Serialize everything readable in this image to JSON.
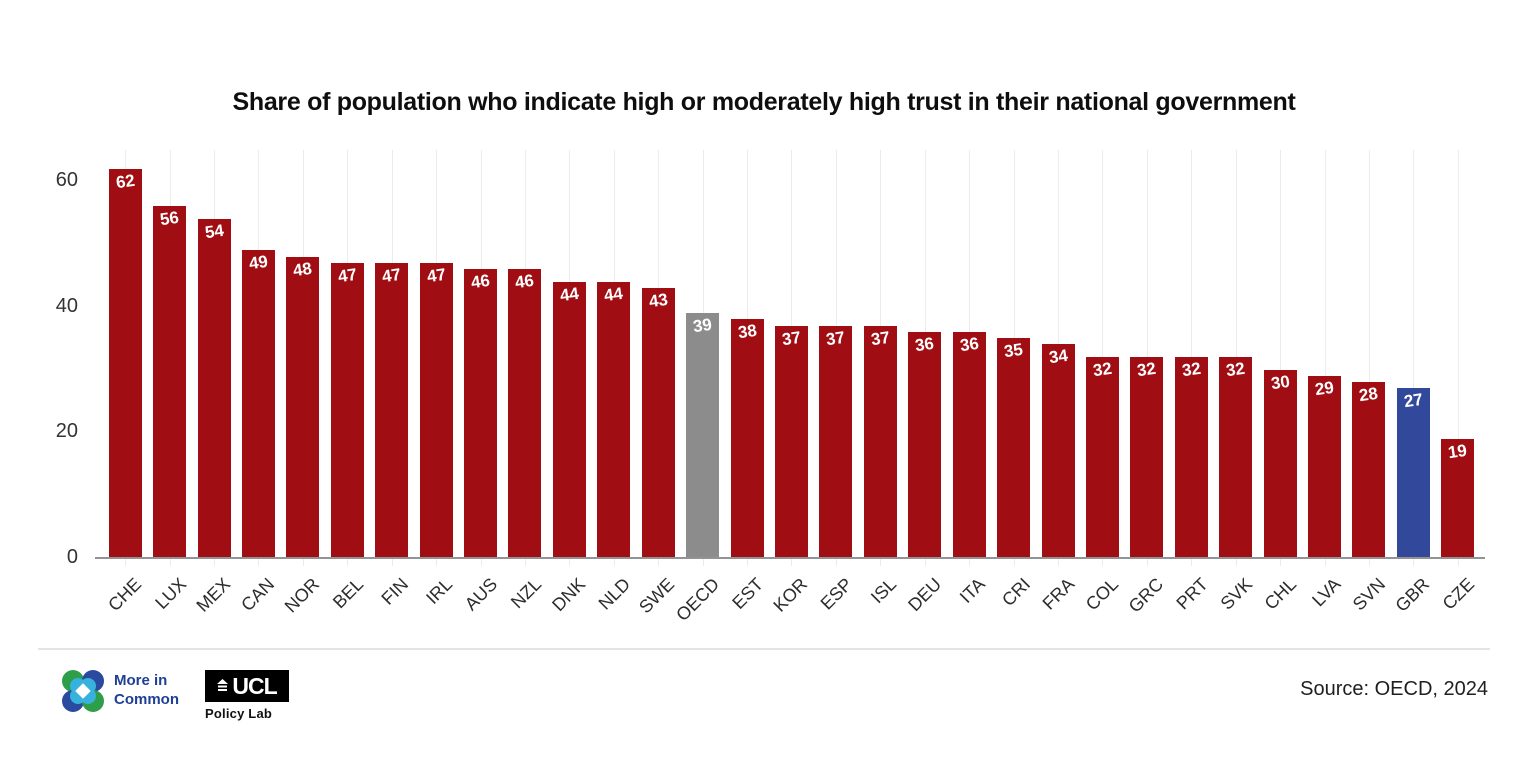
{
  "chart_data": {
    "type": "bar",
    "title": "Share of population who indicate high or moderately high trust in their national government",
    "categories": [
      "CHE",
      "LUX",
      "MEX",
      "CAN",
      "NOR",
      "BEL",
      "FIN",
      "IRL",
      "AUS",
      "NZL",
      "DNK",
      "NLD",
      "SWE",
      "OECD",
      "EST",
      "KOR",
      "ESP",
      "ISL",
      "DEU",
      "ITA",
      "CRI",
      "FRA",
      "COL",
      "GRC",
      "PRT",
      "SVK",
      "CHL",
      "LVA",
      "SVN",
      "GBR",
      "CZE"
    ],
    "values": [
      62,
      56,
      54,
      49,
      48,
      47,
      47,
      47,
      46,
      46,
      44,
      44,
      43,
      39,
      38,
      37,
      37,
      37,
      36,
      36,
      35,
      34,
      32,
      32,
      32,
      32,
      30,
      29,
      28,
      27,
      19
    ],
    "bar_colors": {
      "default": "#a00d12",
      "OECD": "#8c8c8c",
      "GBR": "#32499b"
    },
    "value_label_color": "#ffffff",
    "ylabel": "",
    "xlabel": "",
    "ylim": [
      0,
      65
    ],
    "yticks": [
      0,
      20,
      40,
      60
    ],
    "grid": "vertical-only",
    "legend": "none",
    "value_labels_position": "inside-top"
  },
  "footer": {
    "source": "Source: OECD, 2024",
    "logos": {
      "more_in_common": {
        "line1": "More in",
        "line2": "Common"
      },
      "ucl": {
        "acronym": "UCL",
        "sub": "Policy Lab"
      }
    }
  }
}
